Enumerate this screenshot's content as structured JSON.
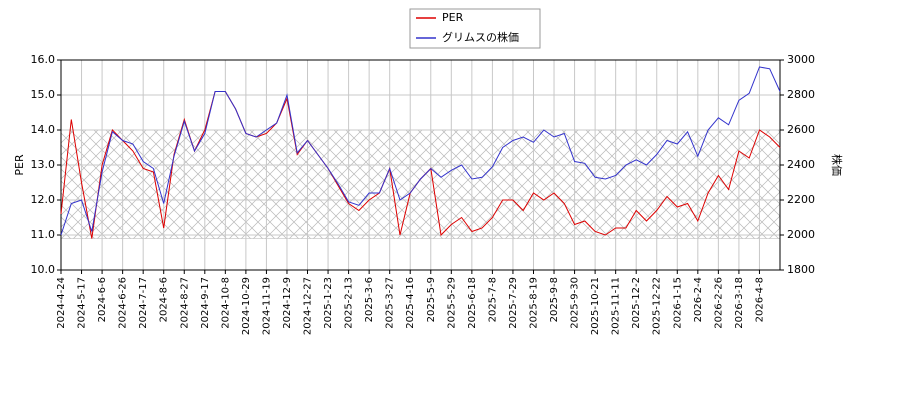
{
  "chart_data": {
    "type": "line",
    "categories": [
      "2024-4-24",
      null,
      "2024-5-17",
      null,
      "2024-6-6",
      null,
      "2024-6-26",
      null,
      "2024-7-17",
      null,
      "2024-8-6",
      null,
      "2024-8-27",
      null,
      "2024-9-17",
      null,
      "2024-10-8",
      null,
      "2024-10-29",
      null,
      "2024-11-19",
      null,
      "2024-12-9",
      null,
      "2024-12-27",
      null,
      "2025-1-23",
      null,
      "2025-2-13",
      null,
      "2025-3-6",
      null,
      "2025-3-27",
      null,
      "2025-4-16",
      null,
      "2025-5-9",
      null,
      "2025-5-29",
      null,
      "2025-6-18",
      null,
      "2025-7-8",
      null,
      "2025-7-29",
      null,
      "2025-8-19",
      null,
      "2025-9-8",
      null,
      "2025-9-30",
      null,
      "2025-10-21",
      null,
      "2025-11-11",
      null,
      "2025-12-2",
      null,
      "2025-12-22",
      null,
      "2026-1-15",
      null,
      "2026-2-4",
      null,
      "2026-2-26",
      null,
      "2026-3-18",
      null,
      "2026-4-8",
      null,
      null
    ],
    "series": [
      {
        "name": "PER",
        "color": "#dd0000",
        "axis": "y",
        "values": [
          11.6,
          14.3,
          12.5,
          10.9,
          13.0,
          14.0,
          13.7,
          13.4,
          12.9,
          12.8,
          11.2,
          13.3,
          14.3,
          13.4,
          14.0,
          15.1,
          15.1,
          14.6,
          13.9,
          13.8,
          13.9,
          14.2,
          14.9,
          13.3,
          13.7,
          13.3,
          12.9,
          12.4,
          11.9,
          11.7,
          12.0,
          12.2,
          12.9,
          11.0,
          12.2,
          12.6,
          12.9,
          11.0,
          11.3,
          11.5,
          11.1,
          11.2,
          11.5,
          12.0,
          12.0,
          11.7,
          12.2,
          12.0,
          12.2,
          11.9,
          11.3,
          11.4,
          11.1,
          11.0,
          11.2,
          11.2,
          11.7,
          11.4,
          11.7,
          12.1,
          11.8,
          11.9,
          11.4,
          12.2,
          12.7,
          12.3,
          13.4,
          13.2,
          14.0,
          13.8,
          13.5
        ]
      },
      {
        "name": "グリムスの株価",
        "color": "#3333cc",
        "axis": "y2",
        "values": [
          2000,
          2180,
          2200,
          2020,
          2360,
          2590,
          2540,
          2520,
          2420,
          2380,
          2180,
          2450,
          2650,
          2480,
          2580,
          2820,
          2820,
          2720,
          2580,
          2560,
          2600,
          2640,
          2800,
          2470,
          2540,
          2460,
          2380,
          2290,
          2190,
          2170,
          2240,
          2240,
          2380,
          2200,
          2240,
          2320,
          2380,
          2330,
          2370,
          2400,
          2320,
          2330,
          2390,
          2500,
          2540,
          2560,
          2530,
          2600,
          2560,
          2580,
          2420,
          2410,
          2330,
          2320,
          2340,
          2400,
          2430,
          2400,
          2460,
          2540,
          2520,
          2590,
          2450,
          2600,
          2670,
          2630,
          2770,
          2810,
          2960,
          2950,
          2820
        ]
      }
    ],
    "ylabel": "PER",
    "y2label": "株価",
    "ylim": [
      10,
      16
    ],
    "yticks": [
      {
        "value": 10,
        "label": "10.0"
      },
      {
        "value": 11,
        "label": "11.0"
      },
      {
        "value": 12,
        "label": "12.0"
      },
      {
        "value": 13,
        "label": "13.0"
      },
      {
        "value": 14,
        "label": "14.0"
      },
      {
        "value": 15,
        "label": "15.0"
      },
      {
        "value": 16,
        "label": "16.0"
      }
    ],
    "y2lim": [
      1800,
      3000
    ],
    "y2ticks": [
      1800,
      2000,
      2200,
      2400,
      2600,
      2800,
      3000
    ],
    "shaded_range": [
      10.9,
      14.0
    ],
    "grid": true,
    "legend": "top"
  }
}
